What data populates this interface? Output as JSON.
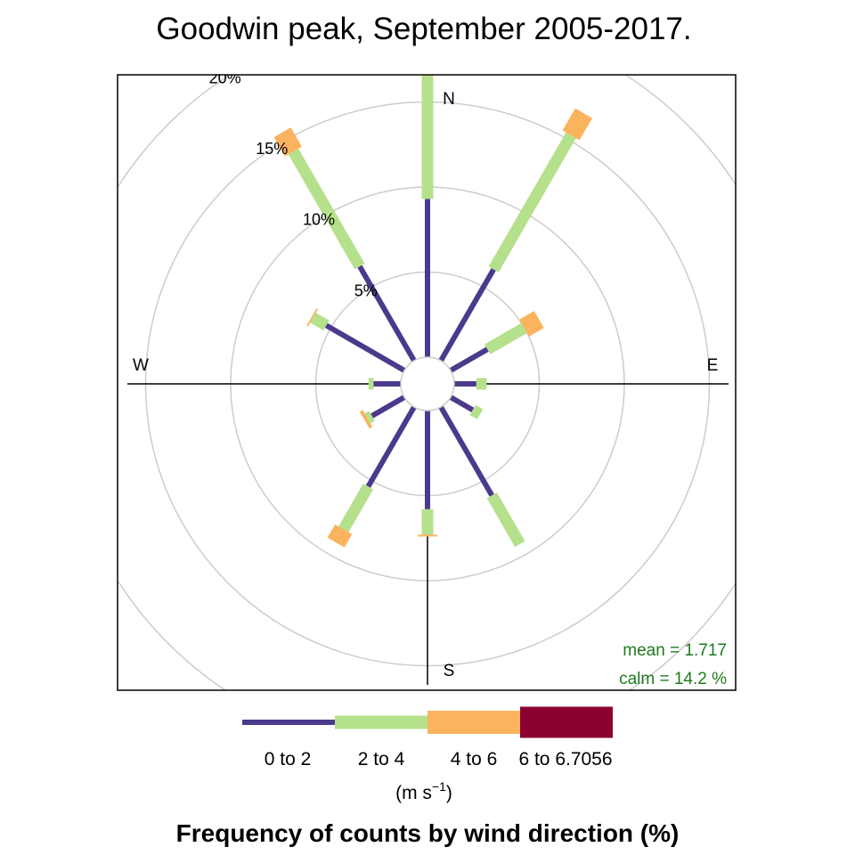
{
  "chart_data": {
    "type": "wind-rose",
    "title": "Goodwin peak, September 2005-2017.",
    "footer": "Frequency of counts by wind direction (%)",
    "compass": {
      "n": "N",
      "e": "E",
      "s": "S",
      "w": "W"
    },
    "rings": [
      {
        "value": 5,
        "label": "5%"
      },
      {
        "value": 10,
        "label": "10%"
      },
      {
        "value": 15,
        "label": "15%"
      },
      {
        "value": 20,
        "label": "20%"
      }
    ],
    "bins": [
      {
        "label": "0 to 2",
        "color": "#4b3a8c"
      },
      {
        "label": "2 to 4",
        "color": "#b5e08c"
      },
      {
        "label": "4 to 6",
        "color": "#fbb35e"
      },
      {
        "label": "6 to 6.7056",
        "color": "#8b0031"
      }
    ],
    "unit_label": "(m s",
    "unit_superscript": "−1",
    "unit_close": ")",
    "stats": {
      "mean_text": "mean  =  1.717",
      "calm_text": "calm =  14.2 %"
    },
    "directions": [
      {
        "angle": 0,
        "cumulative": [
          9.3,
          17.0,
          18.1,
          18.1
        ]
      },
      {
        "angle": 30,
        "cumulative": [
          6.2,
          15.3,
          16.8,
          16.8
        ]
      },
      {
        "angle": 60,
        "cumulative": [
          2.5,
          5.0,
          6.0,
          6.0
        ]
      },
      {
        "angle": 90,
        "cumulative": [
          1.3,
          1.9,
          1.9,
          1.9
        ]
      },
      {
        "angle": 120,
        "cumulative": [
          1.5,
          2.0,
          2.0,
          2.0
        ]
      },
      {
        "angle": 150,
        "cumulative": [
          6.0,
          9.3,
          9.3,
          9.3
        ]
      },
      {
        "angle": 180,
        "cumulative": [
          5.8,
          7.3,
          7.4,
          7.4
        ]
      },
      {
        "angle": 210,
        "cumulative": [
          5.4,
          8.3,
          9.2,
          9.2
        ]
      },
      {
        "angle": 240,
        "cumulative": [
          2.2,
          2.5,
          2.7,
          2.7
        ]
      },
      {
        "angle": 270,
        "cumulative": [
          1.6,
          1.9,
          1.9,
          1.9
        ]
      },
      {
        "angle": 300,
        "cumulative": [
          5.3,
          6.2,
          6.3,
          6.3
        ]
      },
      {
        "angle": 330,
        "cumulative": [
          6.4,
          14.2,
          15.5,
          15.5
        ]
      }
    ]
  }
}
